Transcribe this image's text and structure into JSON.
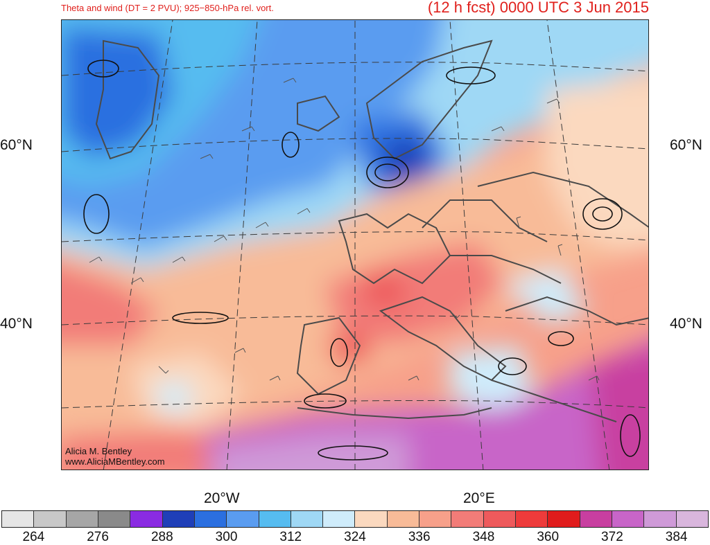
{
  "title": {
    "left": "Theta and wind (DT = 2 PVU); 925−850-hPa rel. vort.",
    "right": "(12 h fcst) 0000 UTC 3 Jun 2015"
  },
  "axes": {
    "lat_labels": [
      "60°N",
      "40°N"
    ],
    "lon_labels": [
      "20°W",
      "20°E"
    ]
  },
  "credit": {
    "name": "Alicia M. Bentley",
    "site": "www.AliciaMBentley.com"
  },
  "colorbar": {
    "colors": [
      "#e6e6e6",
      "#c8c8c8",
      "#a6a6a6",
      "#8a8a8a",
      "#8a2be2",
      "#1f3fb8",
      "#2b6fe0",
      "#5a9cf0",
      "#56bcf0",
      "#9fd8f5",
      "#cfecfb",
      "#fbd9bf",
      "#f8bb98",
      "#f7a08a",
      "#f27c78",
      "#ee5a5c",
      "#ee3b3b",
      "#e01c1c",
      "#c83fa0",
      "#c865c8",
      "#cf9ad8",
      "#d9b6dd"
    ],
    "labels": [
      "264",
      "276",
      "288",
      "300",
      "312",
      "324",
      "336",
      "348",
      "360",
      "372",
      "384"
    ]
  },
  "map_colors": {
    "coast": "#4a4a4a",
    "grid": "#3a3a3a",
    "contour": "#111111"
  }
}
